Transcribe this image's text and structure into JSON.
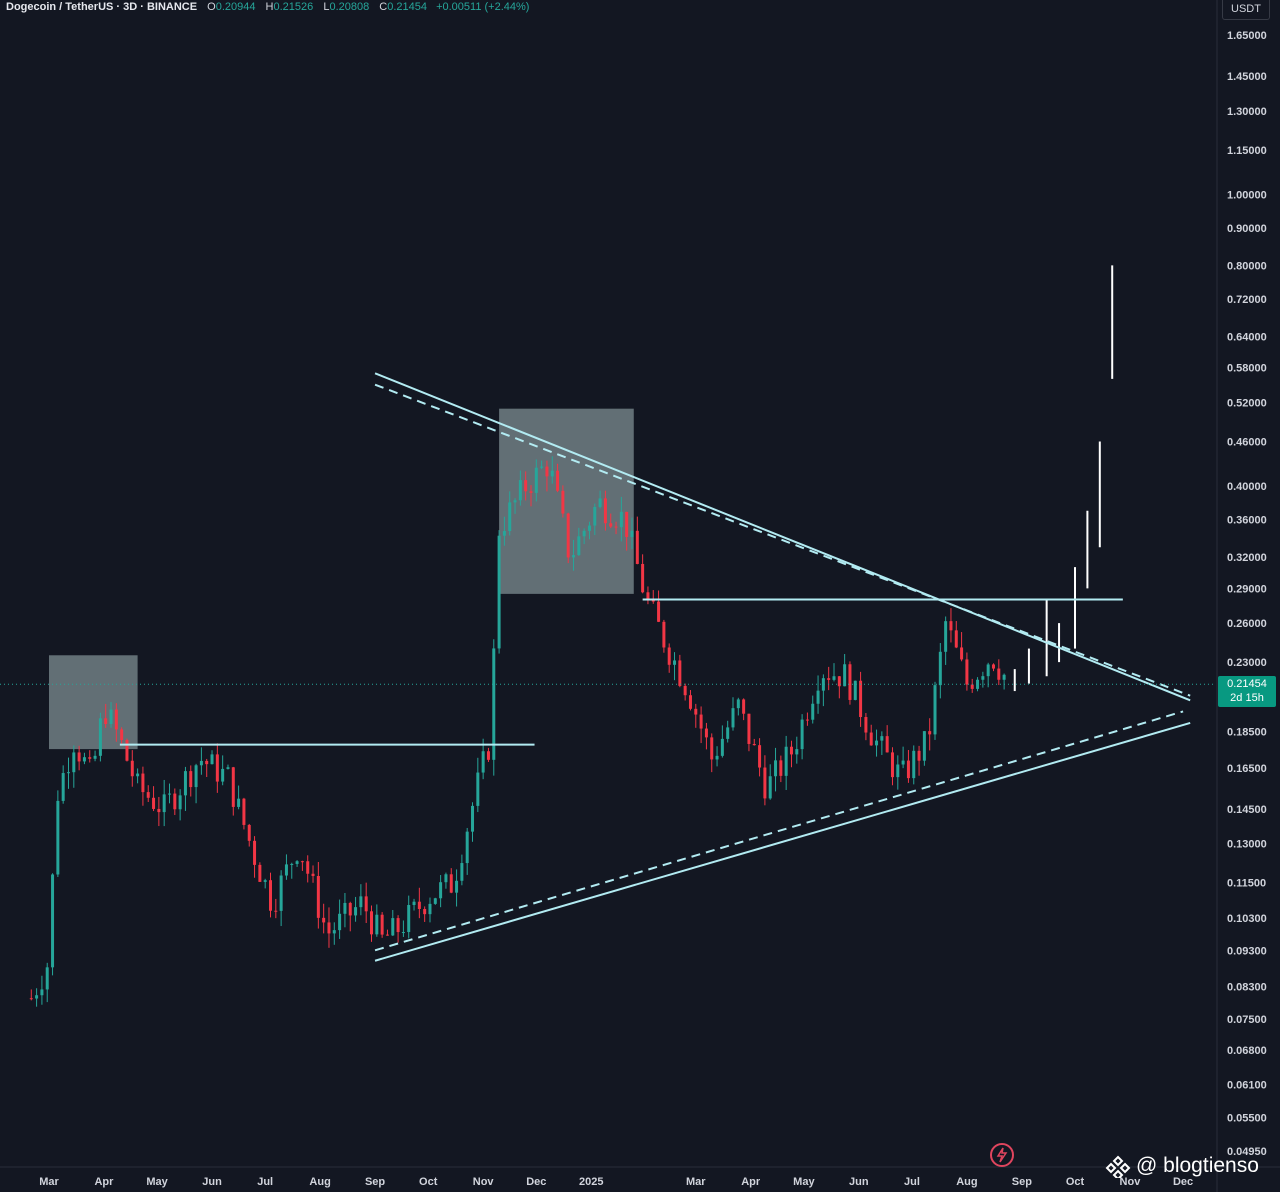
{
  "header": {
    "symbol": "Dogecoin / TetherUS · 3D · BINANCE",
    "open_label": "O",
    "open": "0.20944",
    "high_label": "H",
    "high": "0.21526",
    "low_label": "L",
    "low": "0.20808",
    "close_label": "C",
    "close": "0.21454",
    "change": "+0.00511 (+2.44%)"
  },
  "unit_badge": "USDT",
  "last_price": {
    "price": "0.21454",
    "countdown": "2d 15h"
  },
  "watermark": "@ blogtienso",
  "icons": {
    "flash": "flash-icon",
    "brand": "exchange-logo-icon"
  },
  "colors": {
    "background": "#131722",
    "up": "#26a69a",
    "down": "#f23645",
    "trendline": "#b2ebf2",
    "projection": "#ffffff",
    "zone": "#b2c8c8"
  },
  "chart_data": {
    "type": "candlestick",
    "scale": "log",
    "y_axis_ticks": [
      "1.65000",
      "1.45000",
      "1.30000",
      "1.15000",
      "1.00000",
      "0.90000",
      "0.80000",
      "0.72000",
      "0.64000",
      "0.58000",
      "0.52000",
      "0.46000",
      "0.40000",
      "0.36000",
      "0.32000",
      "0.29000",
      "0.26000",
      "0.23000",
      "0.18500",
      "0.16500",
      "0.14500",
      "0.13000",
      "0.11500",
      "0.10300",
      "0.09300",
      "0.08300",
      "0.07500",
      "0.06800",
      "0.06100",
      "0.05500",
      "0.04950"
    ],
    "x_axis_ticks": [
      "Mar",
      "Apr",
      "May",
      "Jun",
      "Jul",
      "Aug",
      "Sep",
      "Oct",
      "Nov",
      "Dec",
      "2025",
      "Mar",
      "Apr",
      "May",
      "Jun",
      "Jul",
      "Aug",
      "Sep",
      "Oct",
      "Nov",
      "Dec"
    ],
    "ylim": [
      0.0495,
      1.65
    ],
    "grid": false,
    "price_path": [
      {
        "date": "2024-02-20",
        "price": 0.08
      },
      {
        "date": "2024-03-01",
        "price": 0.09
      },
      {
        "date": "2024-03-05",
        "price": 0.15
      },
      {
        "date": "2024-03-15",
        "price": 0.18
      },
      {
        "date": "2024-03-25",
        "price": 0.16
      },
      {
        "date": "2024-04-01",
        "price": 0.2
      },
      {
        "date": "2024-04-10",
        "price": 0.18
      },
      {
        "date": "2024-04-20",
        "price": 0.155
      },
      {
        "date": "2024-05-05",
        "price": 0.145
      },
      {
        "date": "2024-05-25",
        "price": 0.17
      },
      {
        "date": "2024-06-10",
        "price": 0.16
      },
      {
        "date": "2024-06-25",
        "price": 0.125
      },
      {
        "date": "2024-07-05",
        "price": 0.108
      },
      {
        "date": "2024-07-20",
        "price": 0.13
      },
      {
        "date": "2024-08-05",
        "price": 0.098
      },
      {
        "date": "2024-08-25",
        "price": 0.108
      },
      {
        "date": "2024-09-05",
        "price": 0.096
      },
      {
        "date": "2024-09-15",
        "price": 0.1
      },
      {
        "date": "2024-10-01",
        "price": 0.11
      },
      {
        "date": "2024-10-15",
        "price": 0.115
      },
      {
        "date": "2024-10-30",
        "price": 0.16
      },
      {
        "date": "2024-11-05",
        "price": 0.18
      },
      {
        "date": "2024-11-10",
        "price": 0.35
      },
      {
        "date": "2024-11-25",
        "price": 0.4
      },
      {
        "date": "2024-12-08",
        "price": 0.43
      },
      {
        "date": "2024-12-20",
        "price": 0.32
      },
      {
        "date": "2025-01-05",
        "price": 0.38
      },
      {
        "date": "2025-01-20",
        "price": 0.36
      },
      {
        "date": "2025-02-01",
        "price": 0.28
      },
      {
        "date": "2025-02-10",
        "price": 0.25
      },
      {
        "date": "2025-02-25",
        "price": 0.21
      },
      {
        "date": "2025-03-10",
        "price": 0.17
      },
      {
        "date": "2025-03-25",
        "price": 0.2
      },
      {
        "date": "2025-04-10",
        "price": 0.155
      },
      {
        "date": "2025-04-25",
        "price": 0.175
      },
      {
        "date": "2025-05-10",
        "price": 0.225
      },
      {
        "date": "2025-05-25",
        "price": 0.22
      },
      {
        "date": "2025-06-10",
        "price": 0.18
      },
      {
        "date": "2025-06-25",
        "price": 0.16
      },
      {
        "date": "2025-07-10",
        "price": 0.18
      },
      {
        "date": "2025-07-20",
        "price": 0.26
      },
      {
        "date": "2025-08-01",
        "price": 0.215
      },
      {
        "date": "2025-08-15",
        "price": 0.235
      },
      {
        "date": "2025-08-25",
        "price": 0.215
      }
    ],
    "projection": [
      {
        "date": "2025-08-28",
        "low": 0.21,
        "high": 0.225
      },
      {
        "date": "2025-09-05",
        "low": 0.215,
        "high": 0.24
      },
      {
        "date": "2025-09-15",
        "low": 0.22,
        "high": 0.28
      },
      {
        "date": "2025-09-22",
        "low": 0.23,
        "high": 0.26
      },
      {
        "date": "2025-10-01",
        "low": 0.24,
        "high": 0.31
      },
      {
        "date": "2025-10-08",
        "low": 0.29,
        "high": 0.37
      },
      {
        "date": "2025-10-15",
        "low": 0.33,
        "high": 0.46
      },
      {
        "date": "2025-10-22",
        "low": 0.56,
        "high": 0.8
      }
    ],
    "levels": [
      {
        "price": 0.1775,
        "from": "2024-04-10",
        "to": "2024-11-30"
      },
      {
        "price": 0.28,
        "from": "2025-01-30",
        "to": "2025-10-28"
      }
    ],
    "zones": [
      {
        "from": "2024-03-01",
        "to": "2024-04-20",
        "low": 0.175,
        "high": 0.235
      },
      {
        "from": "2024-11-10",
        "to": "2025-01-25",
        "low": 0.285,
        "high": 0.51
      }
    ],
    "trendlines": [
      {
        "style": "solid",
        "from": {
          "date": "2024-09-01",
          "price": 0.09
        },
        "to": {
          "date": "2025-12-05",
          "price": 0.19
        }
      },
      {
        "style": "dashed",
        "from": {
          "date": "2024-09-01",
          "price": 0.093
        },
        "to": {
          "date": "2025-12-01",
          "price": 0.197
        }
      },
      {
        "style": "solid",
        "from": {
          "date": "2024-09-01",
          "price": 0.57
        },
        "to": {
          "date": "2025-12-05",
          "price": 0.204
        }
      },
      {
        "style": "dashed",
        "from": {
          "date": "2024-09-01",
          "price": 0.55
        },
        "to": {
          "date": "2025-12-05",
          "price": 0.207
        }
      }
    ],
    "last_price": 0.21454
  }
}
